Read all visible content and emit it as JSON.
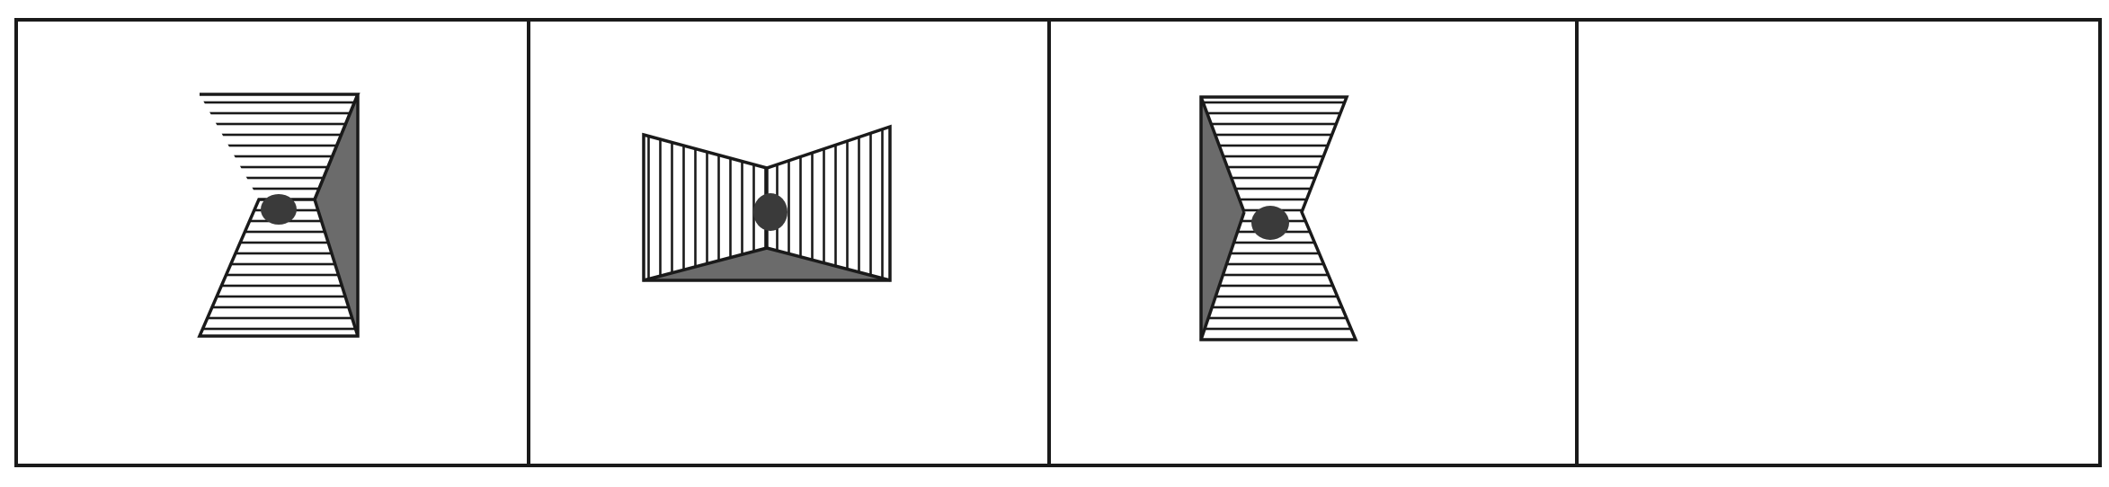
{
  "puzzle": {
    "panel_count": 4,
    "panels": [
      {
        "position": 1,
        "figure": "hourglass-shape",
        "stripe_direction": "horizontal",
        "shaded_side": "right",
        "has_center_dot": true
      },
      {
        "position": 2,
        "figure": "bowtie-shape",
        "stripe_direction": "vertical",
        "shaded_side": "bottom",
        "has_center_dot": true
      },
      {
        "position": 3,
        "figure": "hourglass-shape",
        "stripe_direction": "horizontal",
        "shaded_side": "left",
        "has_center_dot": true
      },
      {
        "position": 4,
        "figure": "empty-answer-slot",
        "has_center_dot": false
      }
    ]
  },
  "colors": {
    "background": "#ffffff",
    "line": "#1a1a1a",
    "shade": "#6b6b6b",
    "dot": "#3a3a3a"
  }
}
